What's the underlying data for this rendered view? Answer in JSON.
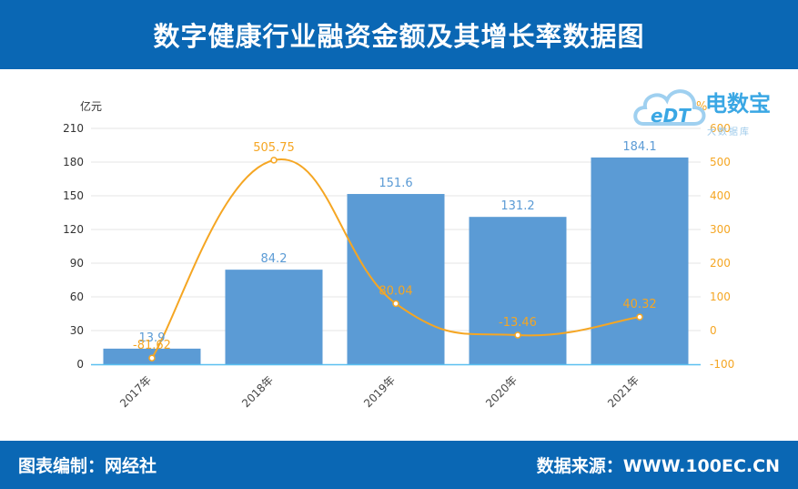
{
  "header": {
    "title": "数字健康行业融资金额及其增长率数据图"
  },
  "footer": {
    "left": "图表编制：网经社",
    "right": "数据来源：WWW.100EC.CN"
  },
  "logo": {
    "name": "电数宝",
    "sub": "大数据库",
    "mark": "eDT"
  },
  "chart_data": {
    "type": "bar",
    "categories": [
      "2017年",
      "2018年",
      "2019年",
      "2020年",
      "2021年"
    ],
    "series": [
      {
        "values": [
          13.9,
          84.2,
          151.6,
          131.2,
          184.1
        ],
        "type": "bar",
        "axis": "left",
        "color": "#5b9bd5"
      },
      {
        "values": [
          -81.62,
          505.75,
          80.04,
          -13.46,
          40.32
        ],
        "type": "line",
        "axis": "right",
        "color": "#f5a623"
      }
    ],
    "ylabel_left": "亿元",
    "ylabel_right": "%",
    "ylim_left": [
      0,
      210
    ],
    "yticks_left": [
      0,
      30,
      60,
      90,
      120,
      150,
      180,
      210
    ],
    "ylim_right": [
      -100,
      600
    ],
    "yticks_right": [
      -100,
      0,
      100,
      200,
      300,
      400,
      500,
      600
    ],
    "bar_labels": [
      "13.9",
      "84.2",
      "151.6",
      "131.2",
      "184.1"
    ],
    "line_labels": [
      "-81.62",
      "505.75",
      "80.04",
      "-13.46",
      "40.32"
    ],
    "grid": true
  }
}
